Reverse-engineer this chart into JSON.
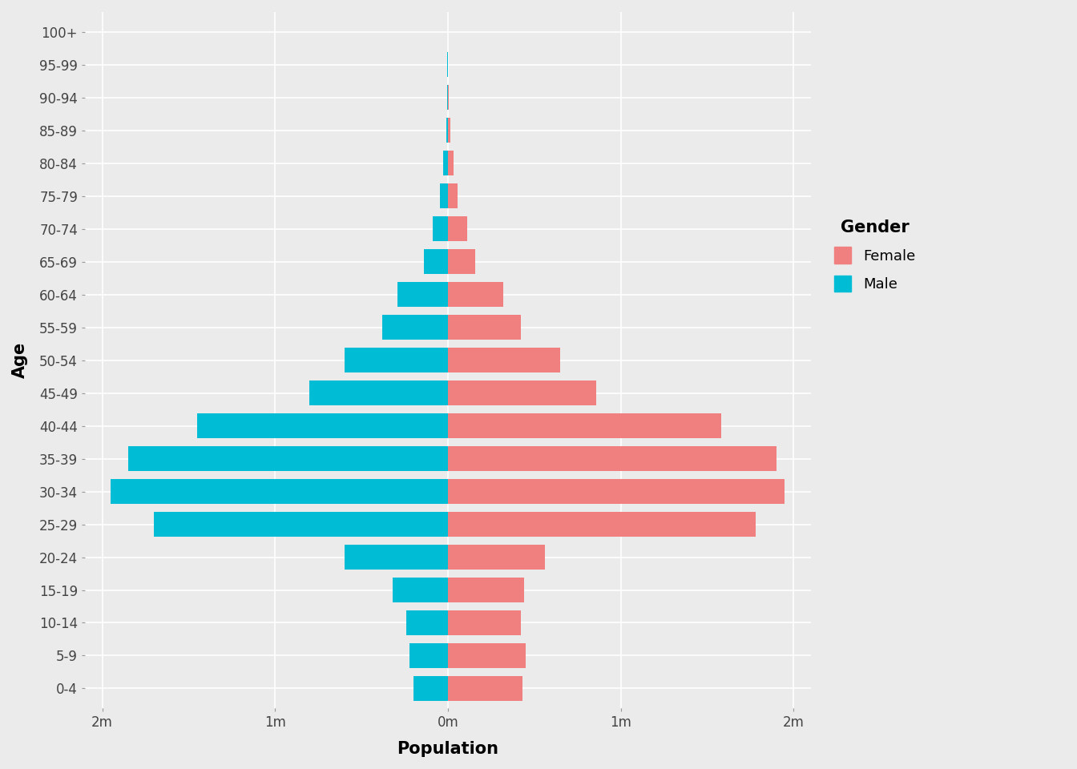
{
  "age_groups": [
    "0-4",
    "5-9",
    "10-14",
    "15-19",
    "20-24",
    "25-29",
    "30-34",
    "35-39",
    "40-44",
    "45-49",
    "50-54",
    "55-59",
    "60-64",
    "65-69",
    "70-74",
    "75-79",
    "80-84",
    "85-89",
    "90-94",
    "95-99",
    "100+"
  ],
  "male": [
    200000,
    220000,
    240000,
    320000,
    600000,
    1700000,
    1950000,
    1850000,
    1450000,
    800000,
    600000,
    380000,
    290000,
    140000,
    90000,
    45000,
    28000,
    10000,
    5000,
    2000,
    1000
  ],
  "female": [
    430000,
    450000,
    420000,
    440000,
    560000,
    1780000,
    1950000,
    1900000,
    1580000,
    860000,
    650000,
    420000,
    320000,
    160000,
    110000,
    55000,
    35000,
    12000,
    6000,
    2500,
    1200
  ],
  "male_color": "#00BCD4",
  "female_color": "#F08080",
  "bg_color": "#EBEBEB",
  "grid_color": "#FFFFFF",
  "xlabel": "Population",
  "ylabel": "Age",
  "xlim_left": -2100000,
  "xlim_right": 2100000,
  "xticks": [
    -2000000,
    -1000000,
    0,
    1000000,
    2000000
  ],
  "xtick_labels": [
    "2m",
    "1m",
    "0m",
    "1m",
    "2m"
  ],
  "legend_title": "Gender",
  "legend_female": "Female",
  "legend_male": "Male",
  "bar_height": 0.75
}
